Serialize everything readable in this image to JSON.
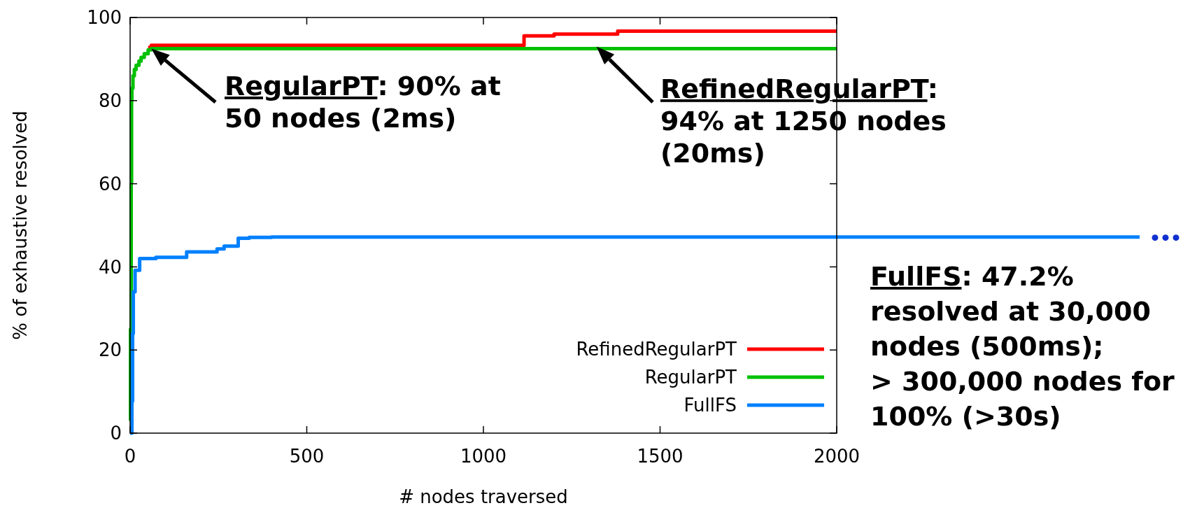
{
  "chart_data": {
    "type": "step",
    "xlabel": "# nodes traversed",
    "ylabel": "% of exhaustive resolved",
    "xlim": [
      0,
      2000
    ],
    "ylim": [
      0,
      100
    ],
    "xticks": [
      0,
      500,
      1000,
      1500,
      2000
    ],
    "yticks": [
      0,
      20,
      40,
      60,
      80,
      100
    ],
    "grid": false,
    "legend": "bottom right",
    "series": [
      {
        "name": "RefinedRegularPT",
        "color": "#ff0000",
        "x": [
          51,
          60,
          1110,
          1115,
          1200,
          1380,
          2000
        ],
        "values": [
          92.8,
          93.3,
          93.3,
          95.6,
          96.0,
          96.7,
          96.7
        ]
      },
      {
        "name": "RegularPT",
        "color": "#00c000",
        "x": [
          0,
          1,
          3,
          4,
          5,
          8,
          12,
          17,
          25,
          31,
          40,
          51,
          60,
          2000
        ],
        "values": [
          3,
          25,
          60,
          80,
          83,
          86,
          87.5,
          88.5,
          89.5,
          90.4,
          91.3,
          92.2,
          92.5,
          92.5
        ]
      },
      {
        "name": "FullFS",
        "color": "#0080ff",
        "x": [
          0,
          5,
          7,
          9,
          14,
          27,
          73,
          160,
          246,
          266,
          306,
          337,
          400,
          2000
        ],
        "values": [
          0,
          7.7,
          24,
          34,
          39.2,
          42,
          42.3,
          43.6,
          44.3,
          45,
          46.9,
          47.1,
          47.2,
          47.2
        ]
      }
    ],
    "annotations": [
      {
        "text": "RegularPT: 90% at\n50 nodes (2ms)",
        "x": 60,
        "y": 92.5
      },
      {
        "text": "RefinedRegularPT:\n94% at 1250 nodes\n(20ms)",
        "x": 1320,
        "y": 93
      },
      "FullFS: 47.2%\nresolved at 30,000\nnodes (500ms);\n> 300,000 nodes for\n100% (>30s)"
    ]
  }
}
